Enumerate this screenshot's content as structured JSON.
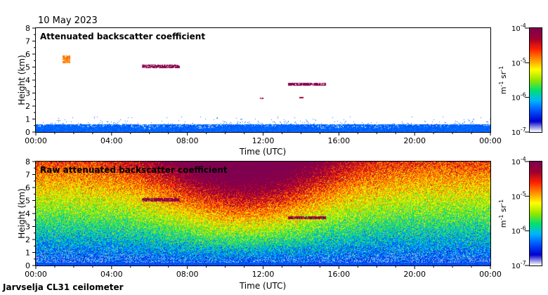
{
  "date": "10 May 2023",
  "footer": "Jarvselja CL31 ceilometer",
  "colormap": [
    "#ffffff",
    "#0000cc",
    "#0050ff",
    "#00b4ff",
    "#00e070",
    "#96e600",
    "#ffff00",
    "#ff9000",
    "#ff2000",
    "#a00030",
    "#800050"
  ],
  "chart_data": [
    {
      "type": "heatmap",
      "title": "Attenuated backscatter coefficient",
      "xlabel": "Time (UTC)",
      "ylabel": "Height (km)",
      "xticks": [
        "00:00",
        "04:00",
        "08:00",
        "12:00",
        "16:00",
        "20:00",
        "00:00"
      ],
      "xlim_hours": [
        0,
        24
      ],
      "ylim_km": [
        0,
        8
      ],
      "yticks": [
        "0",
        "1",
        "2",
        "3",
        "4",
        "5",
        "6",
        "7",
        "8"
      ],
      "colorbar": {
        "label": "m",
        "label_exp1": "-1",
        "label_mid": " sr",
        "label_exp2": "-1",
        "ticks": [
          {
            "base": "10",
            "exp": "-4"
          },
          {
            "base": "10",
            "exp": "-5"
          },
          {
            "base": "10",
            "exp": "-6"
          },
          {
            "base": "10",
            "exp": "-7"
          }
        ]
      },
      "features": [
        {
          "name": "boundary layer",
          "t_start": 0,
          "t_end": 24,
          "h_low": 0.0,
          "h_high": 0.6,
          "intensity": 0.22
        },
        {
          "name": "aerosol layer",
          "t_start": 1.4,
          "t_end": 1.8,
          "h_low": 5.3,
          "h_high": 5.9,
          "intensity": 0.72
        },
        {
          "name": "cloud",
          "t_start": 5.6,
          "t_end": 7.6,
          "h_low": 4.95,
          "h_high": 5.2,
          "intensity": 0.98
        },
        {
          "name": "cloud",
          "t_start": 11.8,
          "t_end": 12.0,
          "h_low": 2.55,
          "h_high": 2.7,
          "intensity": 0.9
        },
        {
          "name": "cloud",
          "t_start": 13.3,
          "t_end": 15.3,
          "h_low": 3.6,
          "h_high": 3.8,
          "intensity": 0.98
        },
        {
          "name": "cloud",
          "t_start": 13.9,
          "t_end": 14.1,
          "h_low": 2.6,
          "h_high": 2.75,
          "intensity": 0.9
        }
      ]
    },
    {
      "type": "heatmap",
      "title": "Raw attenuated backscatter coefficient",
      "xlabel": "Time (UTC)",
      "ylabel": "Height (km)",
      "xticks": [
        "00:00",
        "04:00",
        "08:00",
        "12:00",
        "16:00",
        "20:00",
        "00:00"
      ],
      "xlim_hours": [
        0,
        24
      ],
      "ylim_km": [
        0,
        8
      ],
      "yticks": [
        "0",
        "1",
        "2",
        "3",
        "4",
        "5",
        "6",
        "7",
        "8"
      ],
      "colorbar": {
        "label": "m",
        "label_exp1": "-1",
        "label_mid": " sr",
        "label_exp2": "-1",
        "ticks": [
          {
            "base": "10",
            "exp": "-4"
          },
          {
            "base": "10",
            "exp": "-5"
          },
          {
            "base": "10",
            "exp": "-6"
          },
          {
            "base": "10",
            "exp": "-7"
          }
        ]
      },
      "features": [
        {
          "name": "noise peak",
          "t_center": 11.0,
          "intensity_top": 0.85
        },
        {
          "name": "cloud",
          "t_start": 5.6,
          "t_end": 7.6,
          "h_low": 4.95,
          "h_high": 5.2,
          "intensity": 0.98
        },
        {
          "name": "cloud",
          "t_start": 13.3,
          "t_end": 15.3,
          "h_low": 3.6,
          "h_high": 3.8,
          "intensity": 0.98
        }
      ]
    }
  ]
}
